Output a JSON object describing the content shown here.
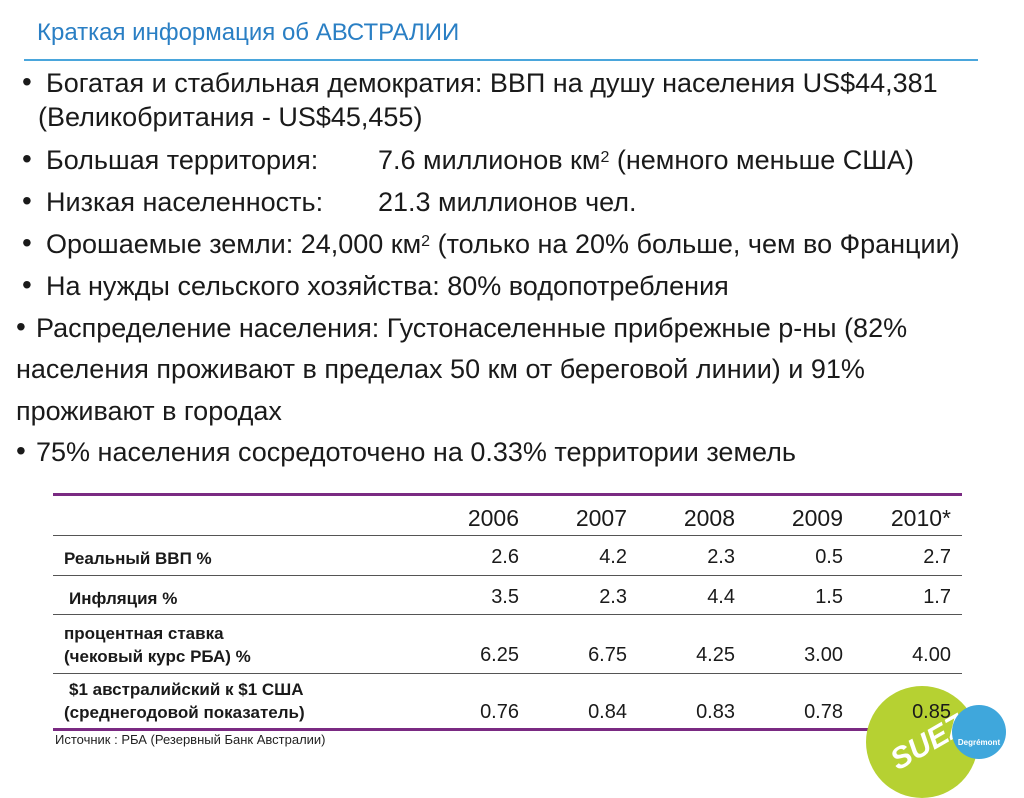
{
  "title": "Краткая информация об АВСТРАЛИИ",
  "bullets": {
    "b1_line1": "Богатая и стабильная демократия: ВВП на душу населения US$44,381",
    "b1_line2": "(Великобритания - US$45,455)",
    "b2_label": "Большая территория:",
    "b2_value": "7.6 миллионов км",
    "b2_sup": "2",
    "b2_rest": "(немного меньше США)",
    "b3_label": "Низкая населенность:",
    "b3_value": "21.3 миллионов чел.",
    "b4_text": "Орошаемые земли: 24,000 км",
    "b4_sup": "2",
    "b4_rest": "(только на 20% больше, чем во Франции)",
    "b5_text": "На нужды сельского хозяйства: 80% водопотребления",
    "b6_line1": "Распределение населения: Густонаселенные прибрежные р-ны (82%",
    "b6_line2": "населения проживают в пределах 50 км от береговой линии) и 91%",
    "b6_line3": "проживают в городах",
    "b7_text": "75% населения сосредоточено на 0.33% территории земель"
  },
  "table": {
    "years": [
      "2006",
      "2007",
      "2008",
      "2009",
      "2010*"
    ],
    "rows": [
      {
        "label_1": "Реальный ВВП %",
        "label_2": "",
        "values": [
          "2.6",
          "4.2",
          "2.3",
          "0.5",
          "2.7"
        ]
      },
      {
        "label_1": "Инфляция %",
        "label_2": "",
        "values": [
          "3.5",
          "2.3",
          "4.4",
          "1.5",
          "1.7"
        ]
      },
      {
        "label_1": "процентная ставка",
        "label_2": "(чековый курс РБА) %",
        "values": [
          "6.25",
          "6.75",
          "4.25",
          "3.00",
          "4.00"
        ]
      },
      {
        "label_1": "$1 австралийский к $1 США",
        "label_2": "(среднегодовой показатель)",
        "values": [
          "0.76",
          "0.84",
          "0.83",
          "0.78",
          "0.85"
        ]
      }
    ]
  },
  "source": "Источник : РБА (Резервный Банк Австралии)",
  "logos": {
    "green_text": "SUEZ",
    "blue_text": "Degrémont"
  },
  "colors": {
    "title": "#2a7fc4",
    "rule": "#4aa6dc",
    "table_rule": "#7a2a82",
    "logo_green": "#b6d132",
    "logo_blue": "#3fa7dc"
  }
}
